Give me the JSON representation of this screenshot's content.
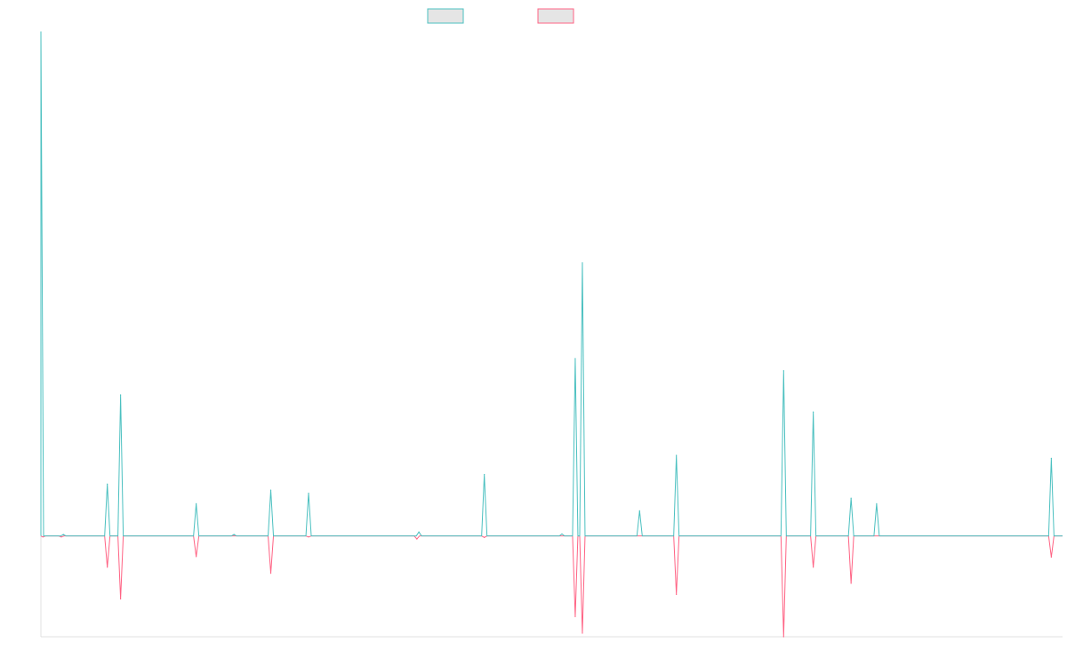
{
  "colors": {
    "series_1": "#4bc0c0",
    "series_2": "#ff6384",
    "legend_fill": "#e5e5e5",
    "axis": "#e0e0e0"
  },
  "chart_data": {
    "type": "line",
    "title": "",
    "xlabel": "",
    "ylabel": "",
    "grid": false,
    "legend": "top-center",
    "x_ticks_visible": false,
    "y_ticks_visible": false,
    "ylim": [
      -0.2,
      1.0
    ],
    "baseline": 0,
    "series": [
      {
        "color_key": "series_1",
        "direction": "up",
        "spikes": [
          {
            "x": 0.0,
            "y": 1.0
          },
          {
            "x": 0.022,
            "y": 0.003
          },
          {
            "x": 0.065,
            "y": 0.103
          },
          {
            "x": 0.078,
            "y": 0.28
          },
          {
            "x": 0.152,
            "y": 0.064
          },
          {
            "x": 0.189,
            "y": 0.003
          },
          {
            "x": 0.225,
            "y": 0.091
          },
          {
            "x": 0.262,
            "y": 0.085
          },
          {
            "x": 0.37,
            "y": 0.008
          },
          {
            "x": 0.434,
            "y": 0.122
          },
          {
            "x": 0.51,
            "y": 0.004
          },
          {
            "x": 0.523,
            "y": 0.352
          },
          {
            "x": 0.53,
            "y": 0.542
          },
          {
            "x": 0.586,
            "y": 0.05
          },
          {
            "x": 0.622,
            "y": 0.16
          },
          {
            "x": 0.727,
            "y": 0.328
          },
          {
            "x": 0.756,
            "y": 0.246
          },
          {
            "x": 0.793,
            "y": 0.075
          },
          {
            "x": 0.818,
            "y": 0.064
          },
          {
            "x": 0.989,
            "y": 0.154
          }
        ]
      },
      {
        "color_key": "series_2",
        "direction": "down",
        "spikes": [
          {
            "x": 0.002,
            "y": -0.002
          },
          {
            "x": 0.02,
            "y": -0.002
          },
          {
            "x": 0.065,
            "y": -0.062
          },
          {
            "x": 0.078,
            "y": -0.125
          },
          {
            "x": 0.152,
            "y": -0.041
          },
          {
            "x": 0.225,
            "y": -0.074
          },
          {
            "x": 0.262,
            "y": -0.002
          },
          {
            "x": 0.368,
            "y": -0.006
          },
          {
            "x": 0.434,
            "y": -0.003
          },
          {
            "x": 0.523,
            "y": -0.16
          },
          {
            "x": 0.53,
            "y": -0.193
          },
          {
            "x": 0.622,
            "y": -0.116
          },
          {
            "x": 0.727,
            "y": -0.2
          },
          {
            "x": 0.756,
            "y": -0.062
          },
          {
            "x": 0.793,
            "y": -0.094
          },
          {
            "x": 0.989,
            "y": -0.042
          }
        ]
      }
    ]
  }
}
